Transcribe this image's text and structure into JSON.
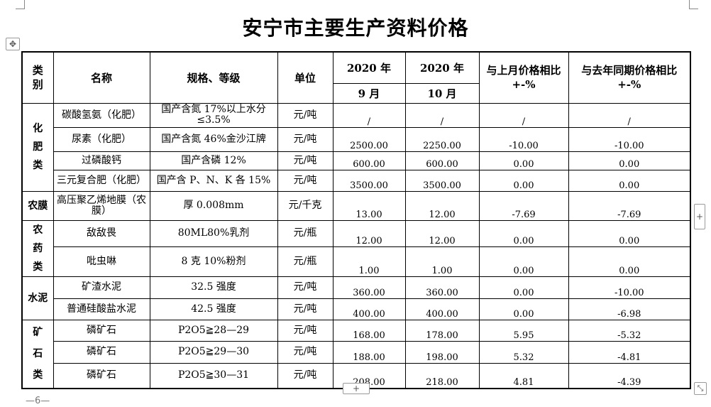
{
  "title": "安宁市主要生产资料价格",
  "header": {
    "category": "类别",
    "name": "名称",
    "spec": "规格、等级",
    "unit": "单位",
    "year1": "2020 年",
    "month1": "9 月",
    "year2": "2020 年",
    "month2": "10 月",
    "mom": "与上月价格相比+-%",
    "yoy": "与去年同期价格相比+-%"
  },
  "categories": {
    "fertilizer": "化肥类",
    "film": "农膜",
    "pesticide": "农药类",
    "cement": "水泥",
    "ore": "矿石类"
  },
  "rows": [
    {
      "name": "碳酸氢氨（化肥）",
      "spec": "国产含氮 17%以上水分≤3.5%",
      "unit": "元/吨",
      "sep": "/",
      "oct": "/",
      "mom": "/",
      "yoy": "/"
    },
    {
      "name": "尿素（化肥）",
      "spec": "国产含氮 46%金沙江牌",
      "unit": "元/吨",
      "sep": "2500.00",
      "oct": "2250.00",
      "mom": "-10.00",
      "yoy": "-10.00"
    },
    {
      "name": "过磷酸钙",
      "spec": "国产含磷 12%",
      "unit": "元/吨",
      "sep": "600.00",
      "oct": "600.00",
      "mom": "0.00",
      "yoy": "0.00"
    },
    {
      "name": "三元复合肥（化肥）",
      "spec": "国产含 P、N、K 各 15%",
      "unit": "元/吨",
      "sep": "3500.00",
      "oct": "3500.00",
      "mom": "0.00",
      "yoy": "0.00"
    },
    {
      "name": "高压聚乙烯地膜（农膜）",
      "spec": "厚 0.008mm",
      "unit": "元/千克",
      "sep": "13.00",
      "oct": "12.00",
      "mom": "-7.69",
      "yoy": "-7.69"
    },
    {
      "name": "敌敌畏",
      "spec": "80ML80%乳剂",
      "unit": "元/瓶",
      "sep": "12.00",
      "oct": "12.00",
      "mom": "0.00",
      "yoy": "0.00"
    },
    {
      "name": "吡虫啉",
      "spec": "8 克 10%粉剂",
      "unit": "元/瓶",
      "sep": "1.00",
      "oct": "1.00",
      "mom": "0.00",
      "yoy": "0.00"
    },
    {
      "name": "矿渣水泥",
      "spec": "32.5 强度",
      "unit": "元/吨",
      "sep": "360.00",
      "oct": "360.00",
      "mom": "0.00",
      "yoy": "-10.00"
    },
    {
      "name": "普通硅酸盐水泥",
      "spec": "42.5 强度",
      "unit": "元/吨",
      "sep": "400.00",
      "oct": "400.00",
      "mom": "0.00",
      "yoy": "-6.98"
    },
    {
      "name": "磷矿石",
      "spec": "P2O5≧28—29",
      "unit": "元/吨",
      "sep": "168.00",
      "oct": "178.00",
      "mom": "5.95",
      "yoy": "-5.32"
    },
    {
      "name": "磷矿石",
      "spec": "P2O5≧29—30",
      "unit": "元/吨",
      "sep": "188.00",
      "oct": "198.00",
      "mom": "5.32",
      "yoy": "-4.81"
    },
    {
      "name": "磷矿石",
      "spec": "P2O5≧30—31",
      "unit": "元/吨",
      "sep": "208.00",
      "oct": "218.00",
      "mom": "4.81",
      "yoy": "-4.39"
    }
  ],
  "controls": {
    "move_glyph": "✥",
    "add_glyph": "+",
    "resize_glyph": "⤡"
  },
  "page_number": "6"
}
